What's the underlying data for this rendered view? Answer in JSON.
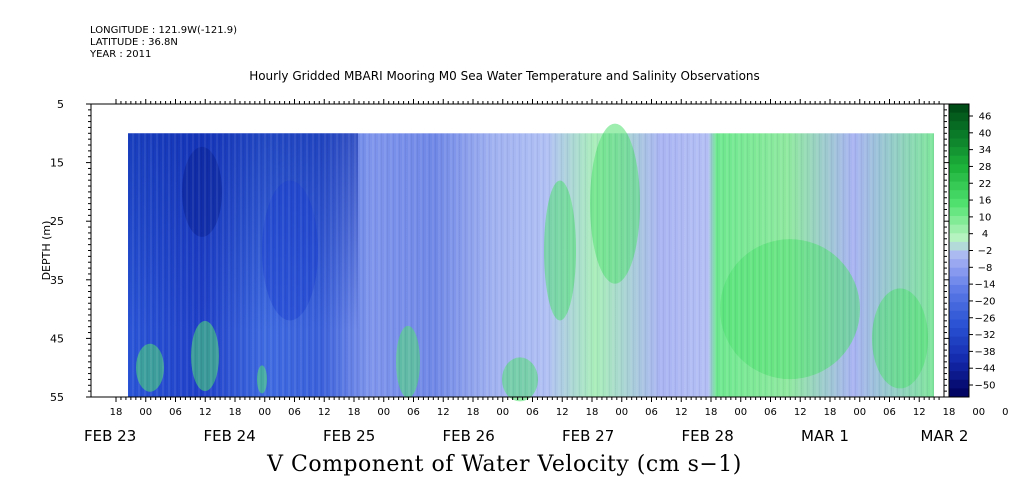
{
  "header": {
    "longitude": "LONGITUDE : 121.9W(-121.9)",
    "latitude": "LATITUDE : 36.8N",
    "year": "YEAR : 2011"
  },
  "chart_data": {
    "type": "heatmap",
    "title": "Hourly Gridded MBARI Mooring M0 Sea Water Temperature and Salinity Observations",
    "xlabel": "V Component of Water Velocity (cm s−1)",
    "ylabel": "DEPTH (m)",
    "ylim": [
      5,
      55
    ],
    "y_inverted": true,
    "y_ticks": [
      5,
      15,
      25,
      35,
      45,
      55
    ],
    "x_hour_ticks": [
      "18",
      "00",
      "06",
      "12",
      "18",
      "00",
      "06",
      "12",
      "18",
      "00",
      "06",
      "12",
      "18",
      "00",
      "06",
      "12",
      "18",
      "00",
      "06",
      "12",
      "18",
      "00",
      "06",
      "12",
      "18",
      "00",
      "06",
      "12",
      "18",
      "00",
      "06",
      "12"
    ],
    "x_date_labels": [
      "FEB 23",
      "FEB 24",
      "FEB 25",
      "FEB 26",
      "FEB 27",
      "FEB 28",
      "MAR  1",
      "MAR  2"
    ],
    "data_range_depth": [
      10,
      55
    ],
    "colorbar": {
      "labels": [
        "46",
        "40",
        "34",
        "28",
        "22",
        "16",
        "10",
        "4",
        "−2",
        "−8",
        "−14",
        "−20",
        "−26",
        "−32",
        "−38",
        "−44",
        "−50"
      ],
      "range": [
        -50,
        50
      ]
    },
    "grid": false
  }
}
